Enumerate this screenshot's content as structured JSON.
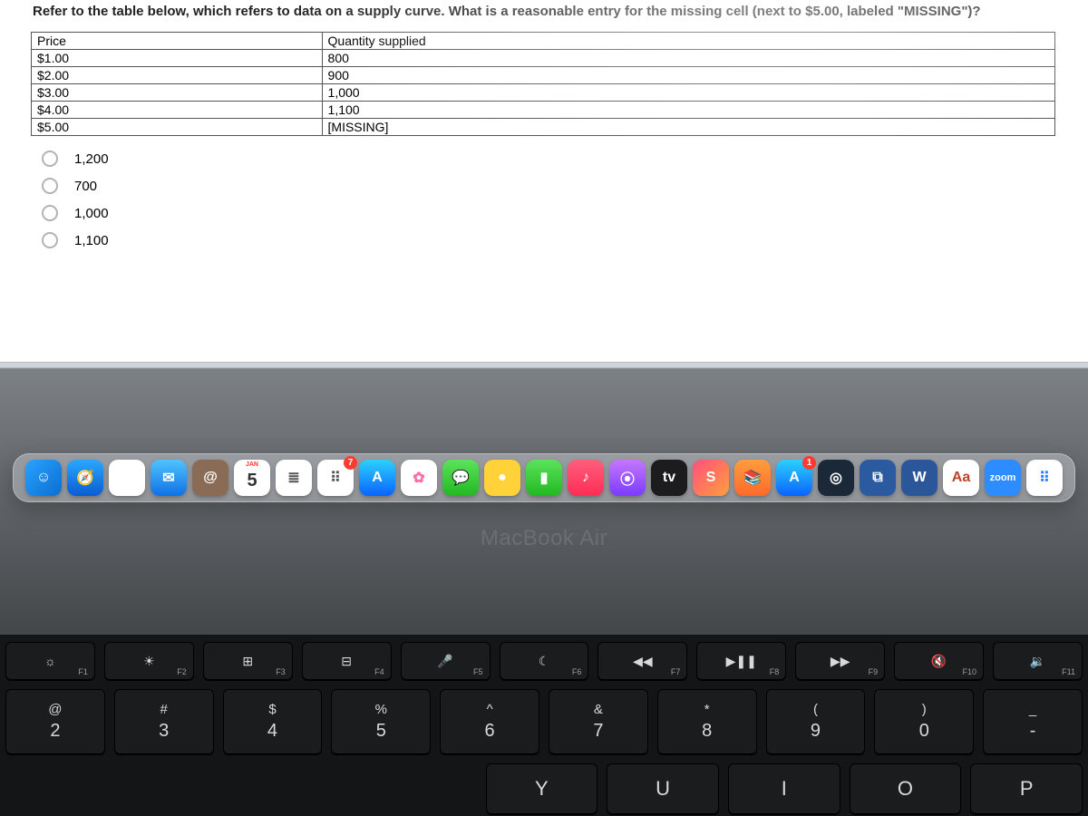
{
  "question": "Refer to the table below, which refers to data on a supply curve. What is a reasonable entry for the missing cell (next to $5.00, labeled \"MISSING\")?",
  "table": {
    "headers": [
      "Price",
      "Quantity supplied"
    ],
    "rows": [
      [
        "$1.00",
        "800"
      ],
      [
        "$2.00",
        "900"
      ],
      [
        "$3.00",
        "1,000"
      ],
      [
        "$4.00",
        "1,100"
      ],
      [
        "$5.00",
        "[MISSING]"
      ]
    ],
    "border_color": "#555555",
    "font_size": 14
  },
  "options": [
    "1,200",
    "700",
    "1,000",
    "1,100"
  ],
  "dock": {
    "icons": [
      {
        "name": "finder",
        "bg": "linear-gradient(135deg,#29a3ff,#0a6ed1)",
        "glyph": "☺"
      },
      {
        "name": "safari",
        "bg": "linear-gradient(180deg,#2aa8ff,#0a5bd1)",
        "glyph": "🧭"
      },
      {
        "name": "chrome",
        "bg": "#ffffff",
        "glyph": "◉"
      },
      {
        "name": "mail",
        "bg": "linear-gradient(180deg,#4fc3ff,#1071e5)",
        "glyph": "✉︎"
      },
      {
        "name": "contacts",
        "bg": "#8a6b55",
        "glyph": "@"
      },
      {
        "name": "calendar",
        "bg": "#ffffff",
        "glyph": "5",
        "text_color": "#333",
        "top_label": "JAN",
        "top_color": "#ff3b30"
      },
      {
        "name": "reminders",
        "bg": "#ffffff",
        "glyph": "≣",
        "text_color": "#555"
      },
      {
        "name": "notes",
        "bg": "#ffffff",
        "glyph": "⠿",
        "text_color": "#555",
        "badge": "7"
      },
      {
        "name": "appstore",
        "bg": "linear-gradient(180deg,#2bd1ff,#0a63ff)",
        "glyph": "A"
      },
      {
        "name": "photos",
        "bg": "#ffffff",
        "glyph": "✿",
        "text_color": "#ff6ea8"
      },
      {
        "name": "messages",
        "bg": "linear-gradient(180deg,#5be35b,#23b823)",
        "glyph": "💬"
      },
      {
        "name": "imessage",
        "bg": "#ffd23a",
        "glyph": "●",
        "text_color": "#fff"
      },
      {
        "name": "facetime",
        "bg": "linear-gradient(180deg,#5be35b,#23b823)",
        "glyph": "▮"
      },
      {
        "name": "music",
        "bg": "linear-gradient(180deg,#ff5e7e,#ff2d55)",
        "glyph": "♪"
      },
      {
        "name": "podcasts",
        "bg": "linear-gradient(180deg,#c577ff,#7a3cff)",
        "glyph": "⦿"
      },
      {
        "name": "tv",
        "bg": "#1c1c1e",
        "glyph": "tv"
      },
      {
        "name": "shortcuts",
        "bg": "linear-gradient(135deg,#ff4f7d,#ff9f3d)",
        "glyph": "S"
      },
      {
        "name": "books",
        "bg": "linear-gradient(180deg,#ff9d3d,#ff6a2a)",
        "glyph": "📚"
      },
      {
        "name": "app-store-2",
        "bg": "linear-gradient(180deg,#2bd1ff,#0a63ff)",
        "glyph": "A",
        "badge": "1"
      },
      {
        "name": "steam",
        "bg": "#1b2838",
        "glyph": "◎"
      },
      {
        "name": "vscode",
        "bg": "#2c5aa0",
        "glyph": "⧉"
      },
      {
        "name": "word",
        "bg": "#2b579a",
        "glyph": "W"
      },
      {
        "name": "dictionary",
        "bg": "#ffffff",
        "glyph": "Aa",
        "text_color": "#b9442b"
      },
      {
        "name": "zoom",
        "bg": "#2d8cff",
        "glyph": "zoom"
      },
      {
        "name": "finder2",
        "bg": "#ffffff",
        "glyph": "⠿",
        "text_color": "#2b7bff"
      }
    ]
  },
  "macbook_label": "MacBook Air",
  "keyboard": {
    "fn_row": [
      {
        "sym": "☼",
        "lab": "F1"
      },
      {
        "sym": "☀",
        "lab": "F2"
      },
      {
        "sym": "⊞",
        "lab": "F3"
      },
      {
        "sym": "⊟",
        "lab": "F4"
      },
      {
        "sym": "🎤",
        "lab": "F5"
      },
      {
        "sym": "☾",
        "lab": "F6"
      },
      {
        "sym": "◀◀",
        "lab": "F7"
      },
      {
        "sym": "▶❚❚",
        "lab": "F8"
      },
      {
        "sym": "▶▶",
        "lab": "F9"
      },
      {
        "sym": "🔇",
        "lab": "F10"
      },
      {
        "sym": "🔉",
        "lab": "F11"
      }
    ],
    "num_row": [
      {
        "top": "@",
        "bot": "2"
      },
      {
        "top": "#",
        "bot": "3"
      },
      {
        "top": "$",
        "bot": "4"
      },
      {
        "top": "%",
        "bot": "5"
      },
      {
        "top": "^",
        "bot": "6"
      },
      {
        "top": "&",
        "bot": "7"
      },
      {
        "top": "*",
        "bot": "8"
      },
      {
        "top": "(",
        "bot": "9"
      },
      {
        "top": ")",
        "bot": "0"
      },
      {
        "top": "_",
        "bot": "-"
      }
    ],
    "letter_row": [
      "Y",
      "U",
      "I",
      "O",
      "P"
    ]
  }
}
